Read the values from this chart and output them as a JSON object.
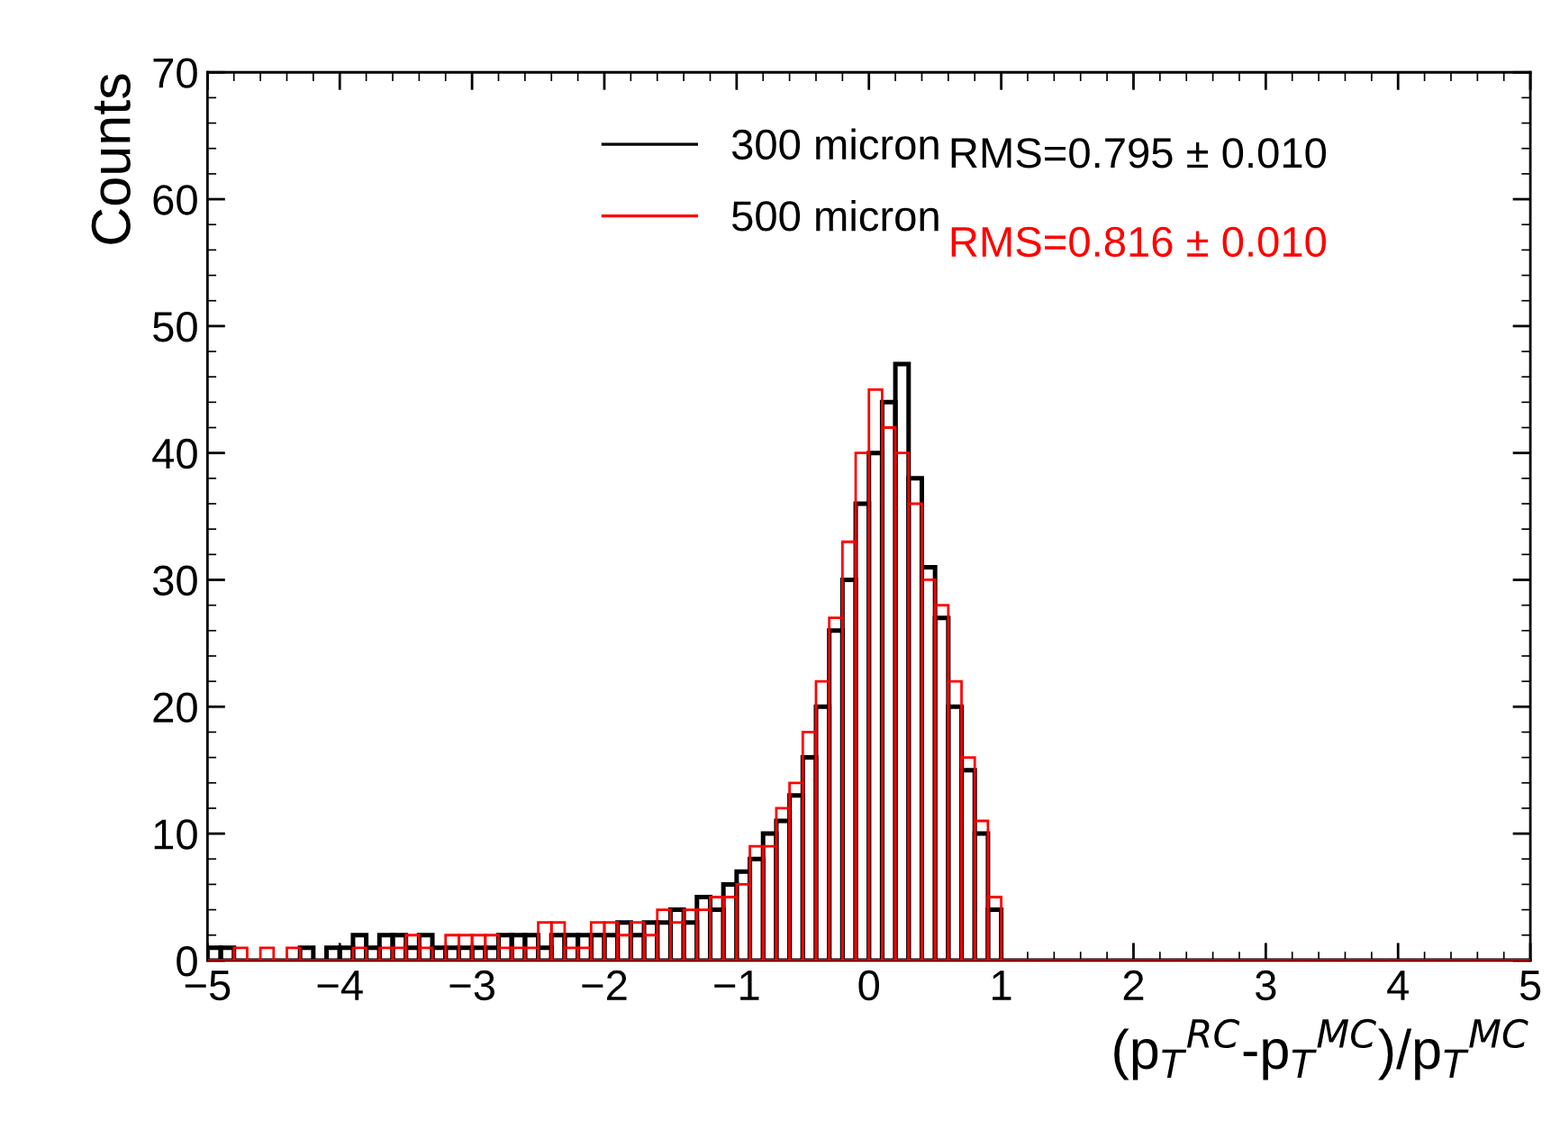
{
  "chart_data": {
    "type": "histogram",
    "xlabel": "(p$_{T}$$^{RC}$-p$_{T}$$^{MC}$)/p$_{T}$$^{MC}$",
    "ylabel": "Counts",
    "bins": [
      -5.0,
      -4.9,
      -4.8,
      -4.7,
      -4.6,
      -4.5,
      -4.4,
      -4.3,
      -4.2,
      -4.1,
      -4.0,
      -3.9,
      -3.8,
      -3.7,
      -3.6,
      -3.5,
      -3.4,
      -3.3,
      -3.2,
      -3.1,
      -3.0,
      -2.9,
      -2.8,
      -2.7,
      -2.6,
      -2.5,
      -2.4,
      -2.3,
      -2.2,
      -2.1,
      -2.0,
      -1.9,
      -1.8,
      -1.7,
      -1.6,
      -1.5,
      -1.4,
      -1.3,
      -1.2,
      -1.1,
      -1.0,
      -0.9,
      -0.8,
      -0.7,
      -0.6,
      -0.5,
      -0.4,
      -0.3,
      -0.2,
      -0.1,
      0.0,
      0.1,
      0.2,
      0.3,
      0.4,
      0.5,
      0.6,
      0.7,
      0.8,
      0.9,
      1.0,
      1.1,
      1.2,
      1.3,
      1.4,
      1.5,
      1.6,
      1.7,
      1.8,
      1.9,
      2.0,
      2.1,
      2.2,
      2.3,
      2.4,
      2.5,
      2.6,
      2.7,
      2.8,
      2.9,
      3.0,
      3.1,
      3.2,
      3.3,
      3.4,
      3.5,
      3.6,
      3.7,
      3.8,
      3.9,
      4.0,
      4.1,
      4.2,
      4.3,
      4.4,
      4.5,
      4.6,
      4.7,
      4.8,
      4.9,
      5.0
    ],
    "series": [
      {
        "name": "300 micron",
        "color": "#000000",
        "values": [
          1,
          1,
          0,
          0,
          0,
          0,
          0,
          1,
          0,
          1,
          1,
          2,
          1,
          2,
          2,
          1,
          2,
          1,
          1,
          1,
          1,
          1,
          2,
          2,
          2,
          1,
          2,
          2,
          2,
          2,
          2,
          3,
          2,
          3,
          3,
          4,
          3,
          5,
          4,
          6,
          7,
          8,
          10,
          11,
          13,
          16,
          20,
          26,
          30,
          36,
          40,
          44,
          47,
          38,
          31,
          27,
          20,
          15,
          10,
          4,
          0,
          0,
          0,
          0,
          0,
          0,
          0,
          0,
          0,
          0,
          0,
          0,
          0,
          0,
          0,
          0,
          0,
          0,
          0,
          0,
          0,
          0,
          0,
          0,
          0,
          0,
          0,
          0,
          0,
          0,
          0,
          0,
          0,
          0,
          0,
          0,
          0,
          0,
          0,
          0
        ]
      },
      {
        "name": "500 micron",
        "color": "#ff0000",
        "values": [
          0,
          0,
          1,
          0,
          1,
          0,
          1,
          0,
          0,
          0,
          0,
          1,
          0,
          1,
          1,
          2,
          1,
          0,
          2,
          2,
          2,
          2,
          1,
          1,
          1,
          3,
          3,
          1,
          1,
          3,
          3,
          2,
          3,
          2,
          4,
          3,
          4,
          4,
          5,
          5,
          6,
          9,
          9,
          12,
          14,
          18,
          22,
          27,
          33,
          40,
          45,
          42,
          40,
          36,
          30,
          28,
          22,
          16,
          11,
          5,
          0,
          0,
          0,
          0,
          0,
          0,
          0,
          0,
          0,
          0,
          0,
          0,
          0,
          0,
          0,
          0,
          0,
          0,
          0,
          0,
          0,
          0,
          0,
          0,
          0,
          0,
          0,
          0,
          0,
          0,
          0,
          0,
          0,
          0,
          0,
          0,
          0,
          0,
          0,
          0
        ]
      }
    ],
    "annotations": [
      "RMS=0.795 ± 0.010",
      "RMS=0.816 ± 0.010"
    ],
    "xlim": [
      -5,
      5
    ],
    "ylim": [
      0,
      70
    ],
    "xticks": [
      {
        "value": -5,
        "label": "−5"
      },
      {
        "value": -4,
        "label": "−4"
      },
      {
        "value": -3,
        "label": "−3"
      },
      {
        "value": -2,
        "label": "−2"
      },
      {
        "value": -1,
        "label": "−1"
      },
      0,
      1,
      2,
      3,
      4,
      5
    ],
    "yticks": [
      0,
      10,
      20,
      30,
      40,
      50,
      60,
      70
    ],
    "legend": "top",
    "grid": false
  }
}
